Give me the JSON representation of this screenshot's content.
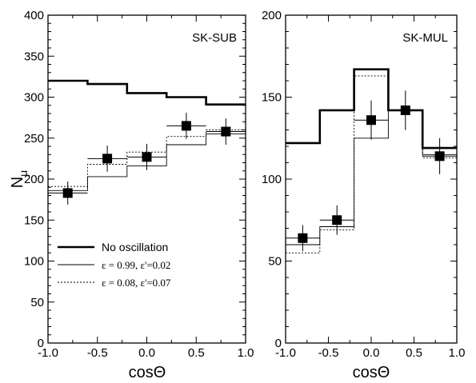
{
  "chart_data": [
    {
      "type": "line",
      "panel_label": "SK-SUB",
      "xlabel": "cosΘ",
      "ylabel": "N",
      "ylabel_sub": "μ",
      "xlim": [
        -1.0,
        1.0
      ],
      "ylim": [
        0,
        400
      ],
      "xticks": [
        "-1.0",
        "-0.5",
        "0.0",
        "0.5",
        "1.0"
      ],
      "yticks": [
        "0",
        "50",
        "100",
        "150",
        "200",
        "250",
        "300",
        "350",
        "400"
      ],
      "bin_edges": [
        -1.0,
        -0.6,
        -0.2,
        0.2,
        0.6,
        1.0
      ],
      "series": [
        {
          "name": "No oscillation",
          "style": "thick",
          "values": [
            320,
            316,
            305,
            300,
            291
          ]
        },
        {
          "name": "ε = 0.99, ε'=0.02",
          "style": "thin",
          "values": [
            186,
            203,
            216,
            242,
            255
          ]
        },
        {
          "name": "ε = 0.08, ε'=0.07",
          "style": "dotted",
          "values": [
            191,
            218,
            233,
            252,
            260
          ]
        }
      ],
      "data_points": {
        "x": [
          -0.8,
          -0.4,
          0.0,
          0.4,
          0.8
        ],
        "y": [
          183,
          225,
          227,
          265,
          258
        ],
        "yerr": [
          14,
          16,
          16,
          16,
          16
        ],
        "xerr": [
          0.2,
          0.2,
          0.2,
          0.2,
          0.2
        ]
      },
      "legend": {
        "placement": "lower-left",
        "entries": [
          "No oscillation",
          "ε = 0.99, ε'=0.02",
          "ε = 0.08, ε'=0.07"
        ]
      }
    },
    {
      "type": "line",
      "panel_label": "SK-MUL",
      "xlabel": "cosΘ",
      "xlim": [
        -1.0,
        1.0
      ],
      "ylim": [
        0,
        200
      ],
      "xticks": [
        "-1.0",
        "-0.5",
        "0.0",
        "0.5",
        "1.0"
      ],
      "yticks": [
        "0",
        "50",
        "100",
        "150",
        "200"
      ],
      "bin_edges": [
        -1.0,
        -0.6,
        -0.2,
        0.2,
        0.6,
        1.0
      ],
      "series": [
        {
          "style": "thick",
          "values": [
            122,
            142,
            167,
            142,
            119
          ]
        },
        {
          "style": "thin",
          "values": [
            60,
            71,
            125,
            142,
            115
          ]
        },
        {
          "style": "dotted",
          "values": [
            55,
            69,
            163,
            142,
            113
          ]
        }
      ],
      "data_points": {
        "x": [
          -0.8,
          -0.4,
          0.0,
          0.4,
          0.8
        ],
        "y": [
          64,
          75,
          136,
          142,
          114
        ],
        "yerr": [
          8,
          9,
          12,
          12,
          11
        ],
        "xerr": [
          0.2,
          0.2,
          0.2,
          0.2,
          0.2
        ]
      }
    }
  ]
}
